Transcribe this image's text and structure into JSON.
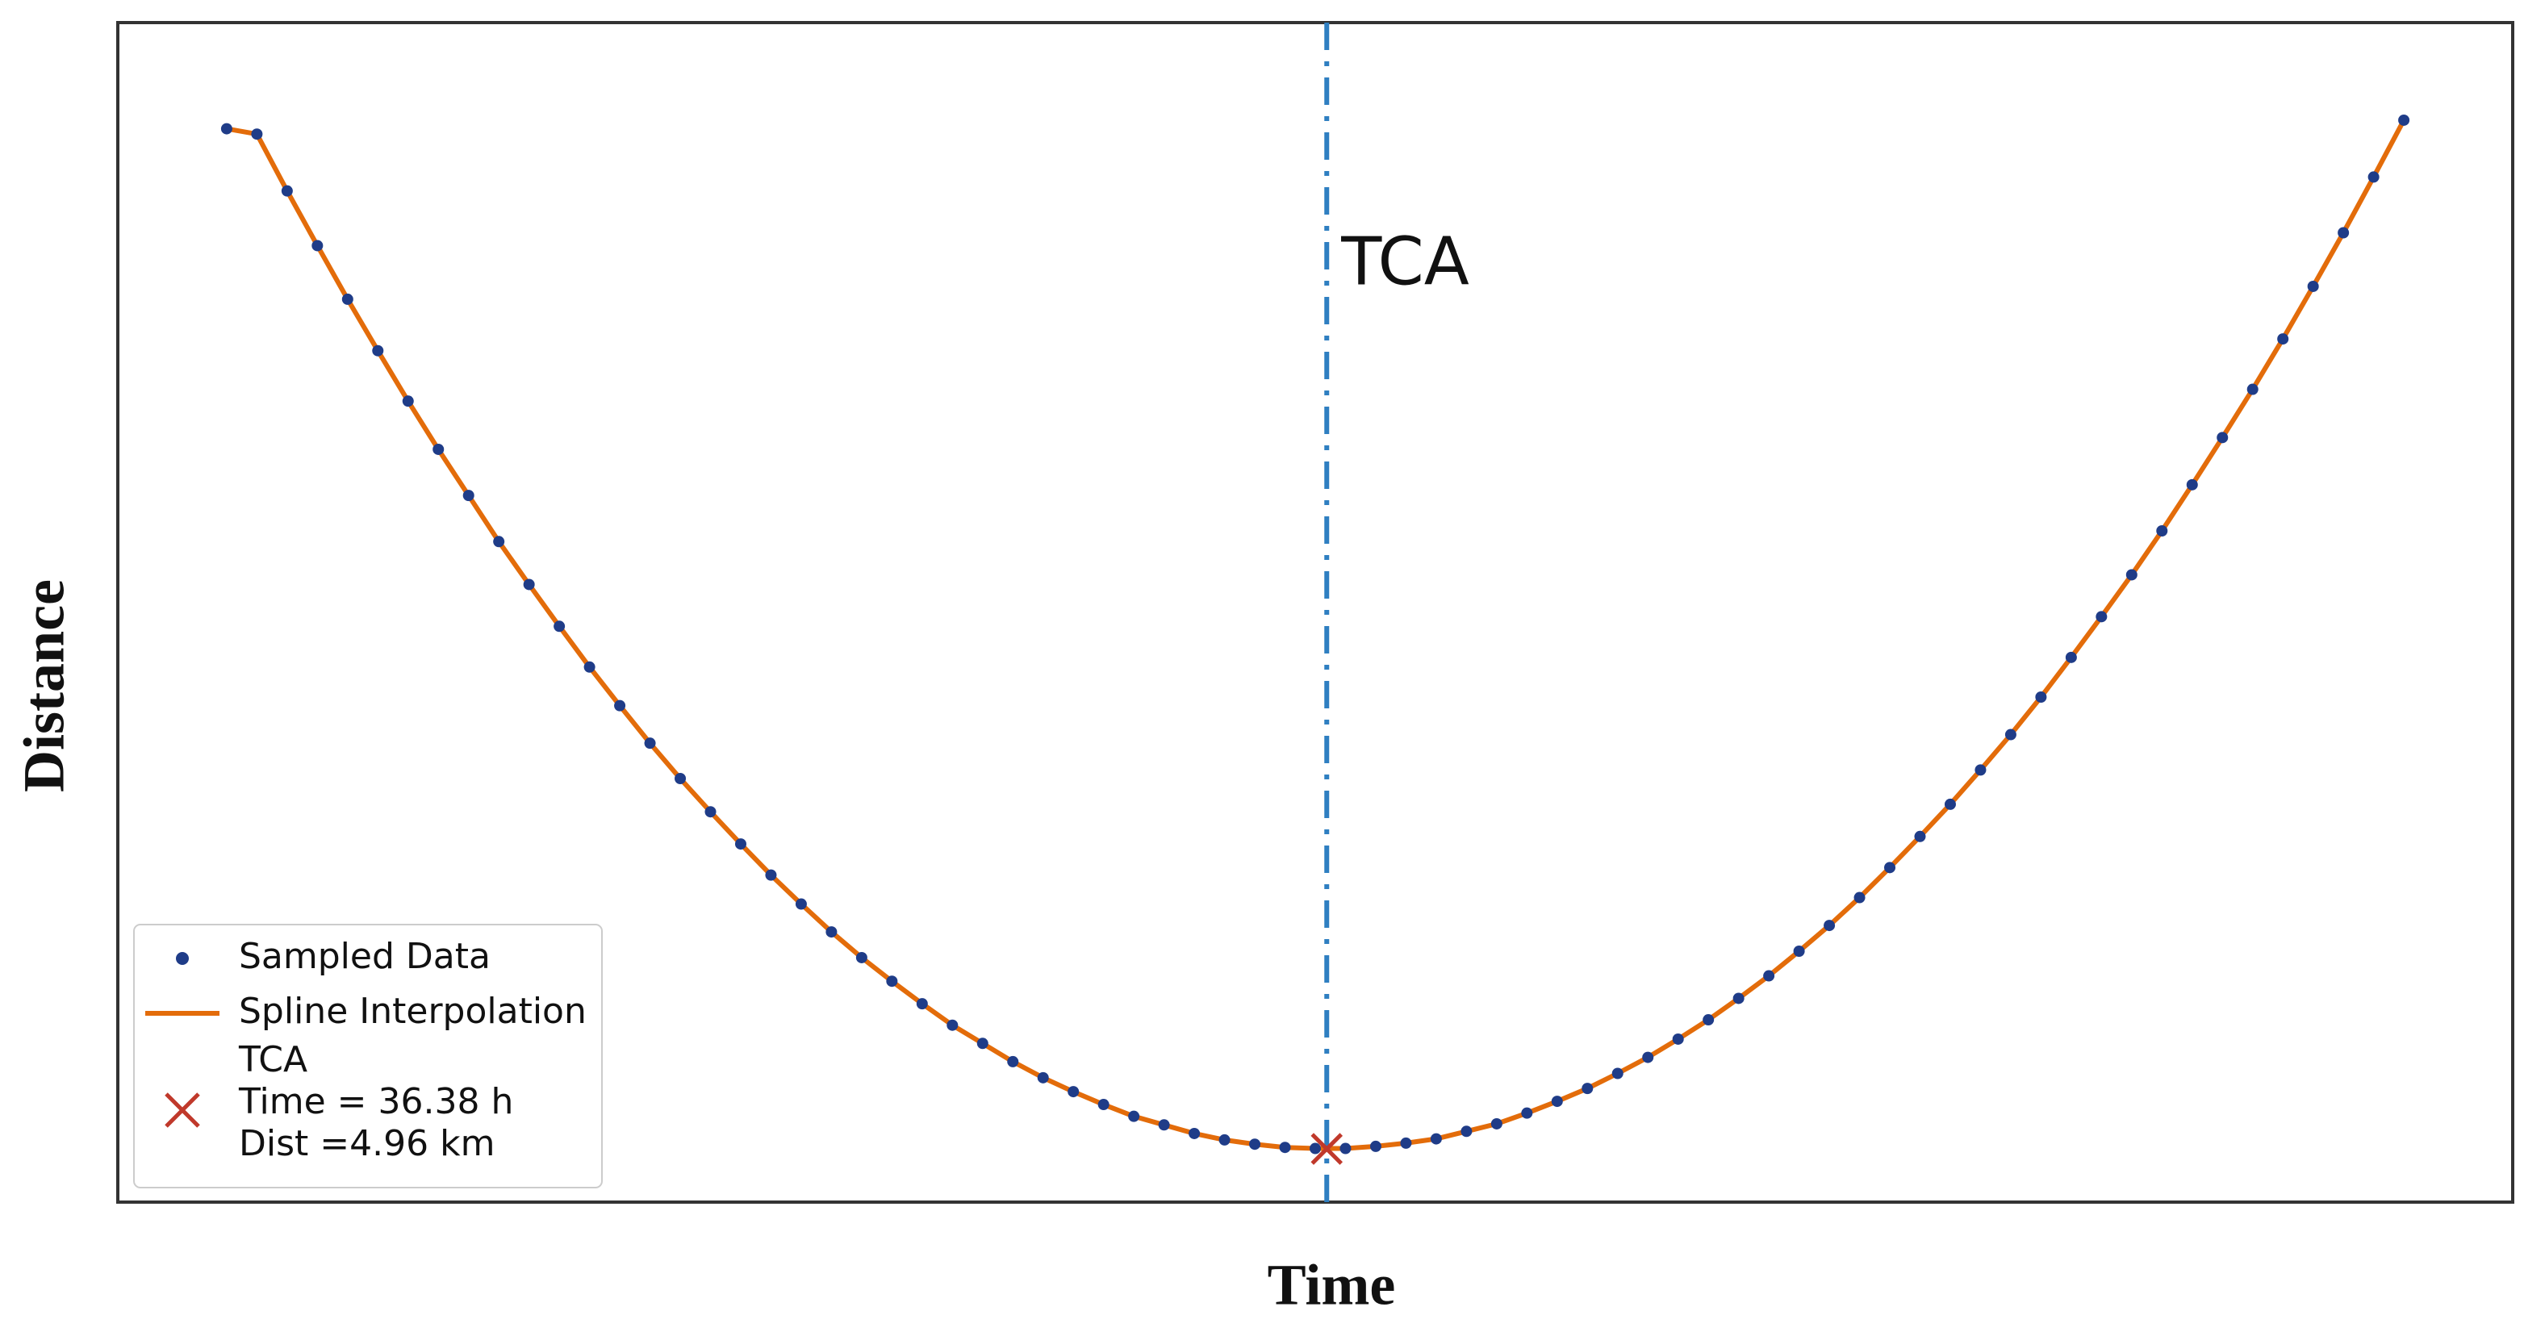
{
  "chart_data": {
    "type": "line",
    "xlabel": "Time",
    "ylabel": "Distance",
    "annotation": "TCA",
    "x": [
      0,
      1,
      2,
      3,
      4,
      5,
      6,
      7,
      8,
      9,
      10,
      11,
      12,
      13,
      14,
      15,
      16,
      17,
      18,
      19,
      20,
      21,
      22,
      23,
      24,
      25,
      26,
      27,
      28,
      29,
      30,
      31,
      32,
      33,
      34,
      35,
      36,
      37,
      38,
      39,
      40,
      41,
      42,
      43,
      44,
      45,
      46,
      47,
      48,
      49,
      50,
      51,
      52,
      53,
      54,
      55,
      56,
      57,
      58,
      59,
      60,
      61,
      62,
      63,
      64,
      65,
      66,
      67,
      68,
      69,
      70,
      71,
      72
    ],
    "series": [
      {
        "name": "Sampled Data",
        "color": "#1f3c88",
        "marker": "dot",
        "values": [
          100.1,
          99.6,
          94.3,
          89.2,
          84.2,
          79.4,
          74.7,
          70.2,
          65.9,
          61.6,
          57.6,
          53.7,
          49.9,
          46.3,
          42.8,
          39.5,
          36.4,
          33.4,
          30.5,
          27.8,
          25.2,
          22.8,
          20.6,
          18.5,
          16.5,
          14.8,
          13.1,
          11.6,
          10.3,
          9.1,
          8.0,
          7.2,
          6.4,
          5.8,
          5.4,
          5.1,
          5.0,
          5.0,
          5.2,
          5.5,
          5.9,
          6.6,
          7.3,
          8.3,
          9.4,
          10.6,
          12.0,
          13.5,
          15.2,
          17.0,
          19.0,
          21.1,
          23.4,
          25.8,
          28.4,
          31.2,
          34.1,
          37.1,
          40.3,
          43.6,
          47.1,
          50.8,
          54.6,
          58.5,
          62.6,
          66.9,
          71.3,
          75.8,
          80.5,
          85.4,
          90.4,
          95.6,
          100.9
        ]
      },
      {
        "name": "Spline Interpolation",
        "color": "#e36c0a",
        "marker": "line",
        "values": [
          100.1,
          99.6,
          94.3,
          89.2,
          84.2,
          79.4,
          74.7,
          70.2,
          65.9,
          61.6,
          57.6,
          53.7,
          49.9,
          46.3,
          42.8,
          39.5,
          36.4,
          33.4,
          30.5,
          27.8,
          25.2,
          22.8,
          20.6,
          18.5,
          16.5,
          14.8,
          13.1,
          11.6,
          10.3,
          9.1,
          8.0,
          7.2,
          6.4,
          5.8,
          5.4,
          5.1,
          5.0,
          5.0,
          5.2,
          5.5,
          5.9,
          6.6,
          7.3,
          8.3,
          9.4,
          10.6,
          12.0,
          13.5,
          15.2,
          17.0,
          19.0,
          21.1,
          23.4,
          25.8,
          28.4,
          31.2,
          34.1,
          37.1,
          40.3,
          43.6,
          47.1,
          50.8,
          54.6,
          58.5,
          62.6,
          66.9,
          71.3,
          75.8,
          80.5,
          85.4,
          90.4,
          95.6,
          100.9
        ]
      }
    ],
    "tca": {
      "x": 36.38,
      "y": 4.96,
      "color": "#c0392b",
      "line_color": "#2f7fc1",
      "legend_lines": [
        "TCA",
        "Time = 36.38 h",
        "Dist =4.96 km"
      ]
    },
    "xlim": [
      -3.6,
      75.6
    ],
    "ylim": [
      0,
      110
    ],
    "xticks": [],
    "yticks": [],
    "legend": "lower left"
  }
}
